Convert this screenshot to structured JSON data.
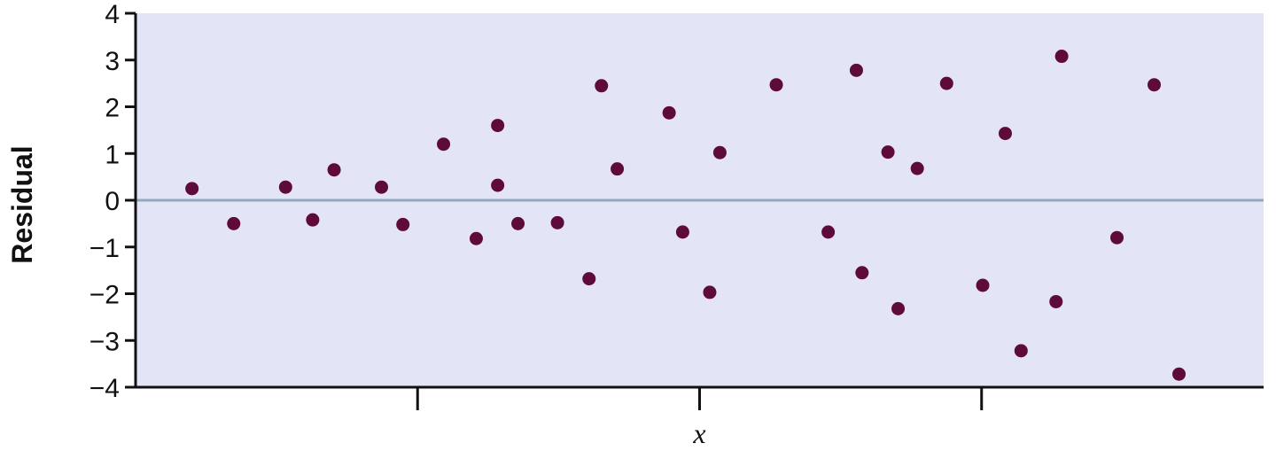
{
  "chart_data": {
    "type": "scatter",
    "title": "",
    "xlabel": "x",
    "ylabel": "Residual",
    "ylim": [
      -4,
      4
    ],
    "xlim": [
      0,
      100
    ],
    "yticks": [
      4,
      3,
      2,
      1,
      0,
      -1,
      -2,
      -3,
      -4
    ],
    "ytick_labels": [
      "4",
      "3",
      "2",
      "1",
      "0",
      "−1",
      "−2",
      "−3",
      "−4"
    ],
    "xticks": [
      25,
      50,
      75
    ],
    "xtick_labels": [],
    "reference_line_y": 0,
    "grid": false,
    "legend": "none",
    "colors": {
      "plot_background": "#e4e4f7",
      "point": "#5e0a3a",
      "reference_line": "#8fa9bd",
      "axis": "#111111"
    },
    "points": [
      {
        "x": 5.0,
        "y": 0.25
      },
      {
        "x": 8.7,
        "y": -0.5
      },
      {
        "x": 13.3,
        "y": 0.28
      },
      {
        "x": 15.7,
        "y": -0.42
      },
      {
        "x": 17.6,
        "y": 0.65
      },
      {
        "x": 21.8,
        "y": 0.28
      },
      {
        "x": 23.7,
        "y": -0.52
      },
      {
        "x": 27.3,
        "y": 1.2
      },
      {
        "x": 30.2,
        "y": -0.82
      },
      {
        "x": 32.1,
        "y": 1.6
      },
      {
        "x": 32.1,
        "y": 0.32
      },
      {
        "x": 33.9,
        "y": -0.5
      },
      {
        "x": 37.4,
        "y": -0.48
      },
      {
        "x": 40.2,
        "y": -1.68
      },
      {
        "x": 41.3,
        "y": 2.45
      },
      {
        "x": 42.7,
        "y": 0.67
      },
      {
        "x": 47.3,
        "y": 1.87
      },
      {
        "x": 48.5,
        "y": -0.68
      },
      {
        "x": 50.9,
        "y": -1.97
      },
      {
        "x": 51.8,
        "y": 1.02
      },
      {
        "x": 56.8,
        "y": 2.47
      },
      {
        "x": 61.4,
        "y": -0.68
      },
      {
        "x": 63.9,
        "y": 2.78
      },
      {
        "x": 64.4,
        "y": -1.55
      },
      {
        "x": 66.7,
        "y": 1.03
      },
      {
        "x": 67.6,
        "y": -2.32
      },
      {
        "x": 69.3,
        "y": 0.68
      },
      {
        "x": 71.9,
        "y": 2.5
      },
      {
        "x": 75.1,
        "y": -1.82
      },
      {
        "x": 77.1,
        "y": 1.43
      },
      {
        "x": 78.5,
        "y": -3.22
      },
      {
        "x": 81.6,
        "y": -2.17
      },
      {
        "x": 82.1,
        "y": 3.08
      },
      {
        "x": 87.0,
        "y": -0.8
      },
      {
        "x": 90.3,
        "y": 2.47
      },
      {
        "x": 92.5,
        "y": -3.72
      }
    ]
  }
}
